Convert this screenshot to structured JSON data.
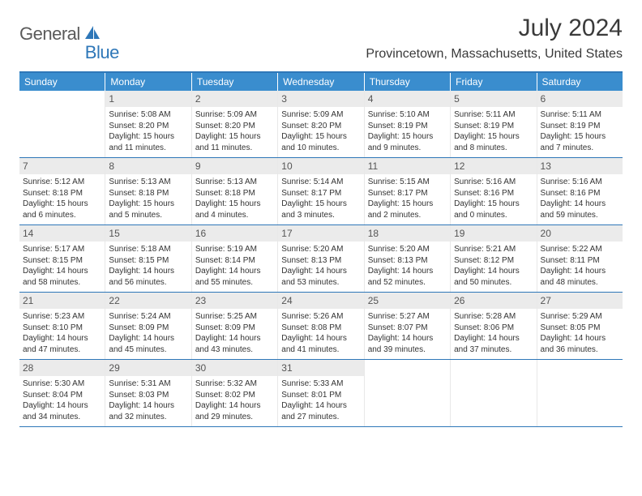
{
  "logo": {
    "part1": "General",
    "part2": "Blue"
  },
  "title": "July 2024",
  "location": "Provincetown, Massachusetts, United States",
  "colors": {
    "header_bg": "#3a8dce",
    "border": "#2e77b8",
    "daynum_bg": "#ebebeb",
    "text": "#333333",
    "title": "#3a3a3a"
  },
  "weekdays": [
    "Sunday",
    "Monday",
    "Tuesday",
    "Wednesday",
    "Thursday",
    "Friday",
    "Saturday"
  ],
  "first_weekday_index": 1,
  "days": [
    {
      "n": 1,
      "sunrise": "5:08 AM",
      "sunset": "8:20 PM",
      "daylight": "15 hours and 11 minutes."
    },
    {
      "n": 2,
      "sunrise": "5:09 AM",
      "sunset": "8:20 PM",
      "daylight": "15 hours and 11 minutes."
    },
    {
      "n": 3,
      "sunrise": "5:09 AM",
      "sunset": "8:20 PM",
      "daylight": "15 hours and 10 minutes."
    },
    {
      "n": 4,
      "sunrise": "5:10 AM",
      "sunset": "8:19 PM",
      "daylight": "15 hours and 9 minutes."
    },
    {
      "n": 5,
      "sunrise": "5:11 AM",
      "sunset": "8:19 PM",
      "daylight": "15 hours and 8 minutes."
    },
    {
      "n": 6,
      "sunrise": "5:11 AM",
      "sunset": "8:19 PM",
      "daylight": "15 hours and 7 minutes."
    },
    {
      "n": 7,
      "sunrise": "5:12 AM",
      "sunset": "8:18 PM",
      "daylight": "15 hours and 6 minutes."
    },
    {
      "n": 8,
      "sunrise": "5:13 AM",
      "sunset": "8:18 PM",
      "daylight": "15 hours and 5 minutes."
    },
    {
      "n": 9,
      "sunrise": "5:13 AM",
      "sunset": "8:18 PM",
      "daylight": "15 hours and 4 minutes."
    },
    {
      "n": 10,
      "sunrise": "5:14 AM",
      "sunset": "8:17 PM",
      "daylight": "15 hours and 3 minutes."
    },
    {
      "n": 11,
      "sunrise": "5:15 AM",
      "sunset": "8:17 PM",
      "daylight": "15 hours and 2 minutes."
    },
    {
      "n": 12,
      "sunrise": "5:16 AM",
      "sunset": "8:16 PM",
      "daylight": "15 hours and 0 minutes."
    },
    {
      "n": 13,
      "sunrise": "5:16 AM",
      "sunset": "8:16 PM",
      "daylight": "14 hours and 59 minutes."
    },
    {
      "n": 14,
      "sunrise": "5:17 AM",
      "sunset": "8:15 PM",
      "daylight": "14 hours and 58 minutes."
    },
    {
      "n": 15,
      "sunrise": "5:18 AM",
      "sunset": "8:15 PM",
      "daylight": "14 hours and 56 minutes."
    },
    {
      "n": 16,
      "sunrise": "5:19 AM",
      "sunset": "8:14 PM",
      "daylight": "14 hours and 55 minutes."
    },
    {
      "n": 17,
      "sunrise": "5:20 AM",
      "sunset": "8:13 PM",
      "daylight": "14 hours and 53 minutes."
    },
    {
      "n": 18,
      "sunrise": "5:20 AM",
      "sunset": "8:13 PM",
      "daylight": "14 hours and 52 minutes."
    },
    {
      "n": 19,
      "sunrise": "5:21 AM",
      "sunset": "8:12 PM",
      "daylight": "14 hours and 50 minutes."
    },
    {
      "n": 20,
      "sunrise": "5:22 AM",
      "sunset": "8:11 PM",
      "daylight": "14 hours and 48 minutes."
    },
    {
      "n": 21,
      "sunrise": "5:23 AM",
      "sunset": "8:10 PM",
      "daylight": "14 hours and 47 minutes."
    },
    {
      "n": 22,
      "sunrise": "5:24 AM",
      "sunset": "8:09 PM",
      "daylight": "14 hours and 45 minutes."
    },
    {
      "n": 23,
      "sunrise": "5:25 AM",
      "sunset": "8:09 PM",
      "daylight": "14 hours and 43 minutes."
    },
    {
      "n": 24,
      "sunrise": "5:26 AM",
      "sunset": "8:08 PM",
      "daylight": "14 hours and 41 minutes."
    },
    {
      "n": 25,
      "sunrise": "5:27 AM",
      "sunset": "8:07 PM",
      "daylight": "14 hours and 39 minutes."
    },
    {
      "n": 26,
      "sunrise": "5:28 AM",
      "sunset": "8:06 PM",
      "daylight": "14 hours and 37 minutes."
    },
    {
      "n": 27,
      "sunrise": "5:29 AM",
      "sunset": "8:05 PM",
      "daylight": "14 hours and 36 minutes."
    },
    {
      "n": 28,
      "sunrise": "5:30 AM",
      "sunset": "8:04 PM",
      "daylight": "14 hours and 34 minutes."
    },
    {
      "n": 29,
      "sunrise": "5:31 AM",
      "sunset": "8:03 PM",
      "daylight": "14 hours and 32 minutes."
    },
    {
      "n": 30,
      "sunrise": "5:32 AM",
      "sunset": "8:02 PM",
      "daylight": "14 hours and 29 minutes."
    },
    {
      "n": 31,
      "sunrise": "5:33 AM",
      "sunset": "8:01 PM",
      "daylight": "14 hours and 27 minutes."
    }
  ],
  "labels": {
    "sunrise": "Sunrise:",
    "sunset": "Sunset:",
    "daylight": "Daylight:"
  }
}
